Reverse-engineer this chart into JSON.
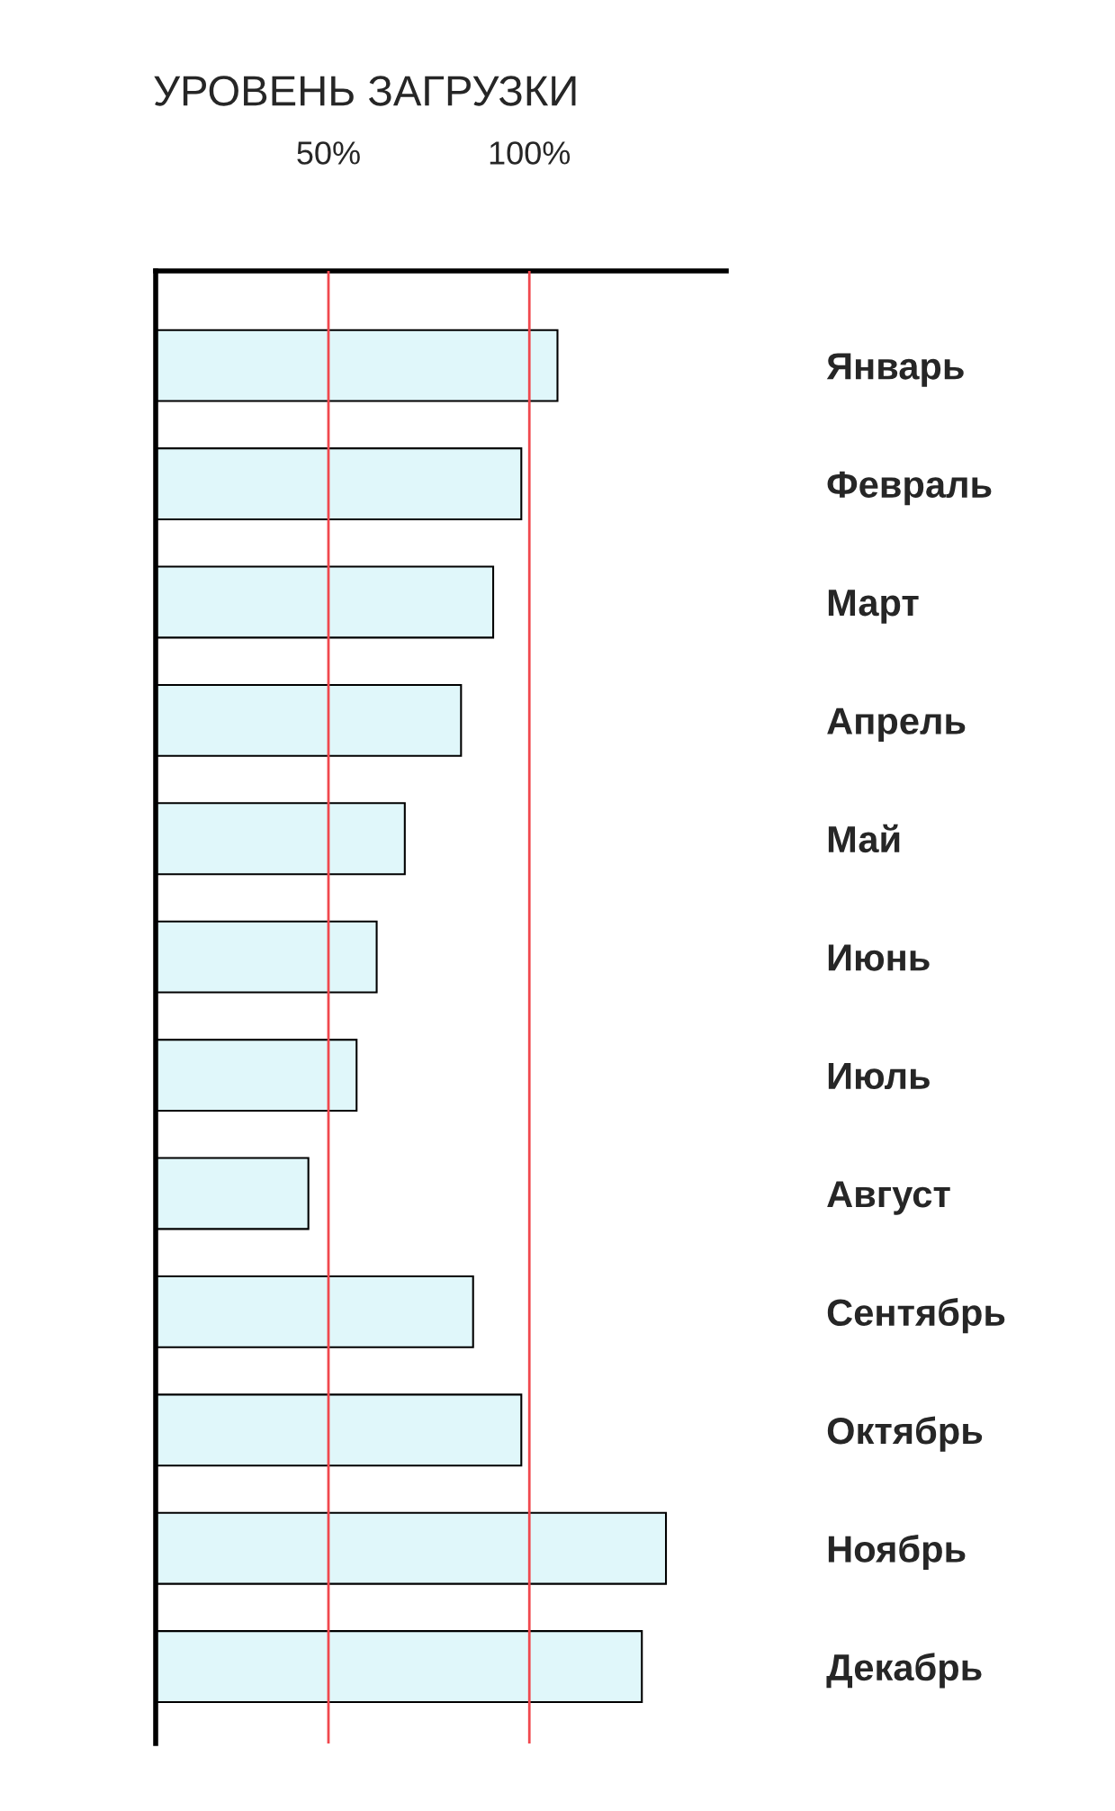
{
  "chart_data": {
    "type": "bar",
    "orientation": "horizontal",
    "title": "УРОВЕНЬ ЗАГРУЗКИ",
    "categories": [
      "Январь",
      "Февраль",
      "Март",
      "Апрель",
      "Май",
      "Июнь",
      "Июль",
      "Август",
      "Сентябрь",
      "Октябрь",
      "Ноябрь",
      "Декабрь"
    ],
    "values": [
      107,
      98,
      91,
      83,
      69,
      62,
      57,
      45,
      86,
      98,
      134,
      128
    ],
    "color": "#e0f7fa",
    "xlim": [
      7,
      149
    ],
    "xticks": [
      {
        "value": 50,
        "label": "50%"
      },
      {
        "value": 100,
        "label": "100%"
      }
    ],
    "ref_lines": [
      {
        "axis": "x",
        "value": 50,
        "color": "#f0484e"
      },
      {
        "axis": "x",
        "value": 100,
        "color": "#f0484e"
      }
    ],
    "grid": false,
    "legend": false
  }
}
